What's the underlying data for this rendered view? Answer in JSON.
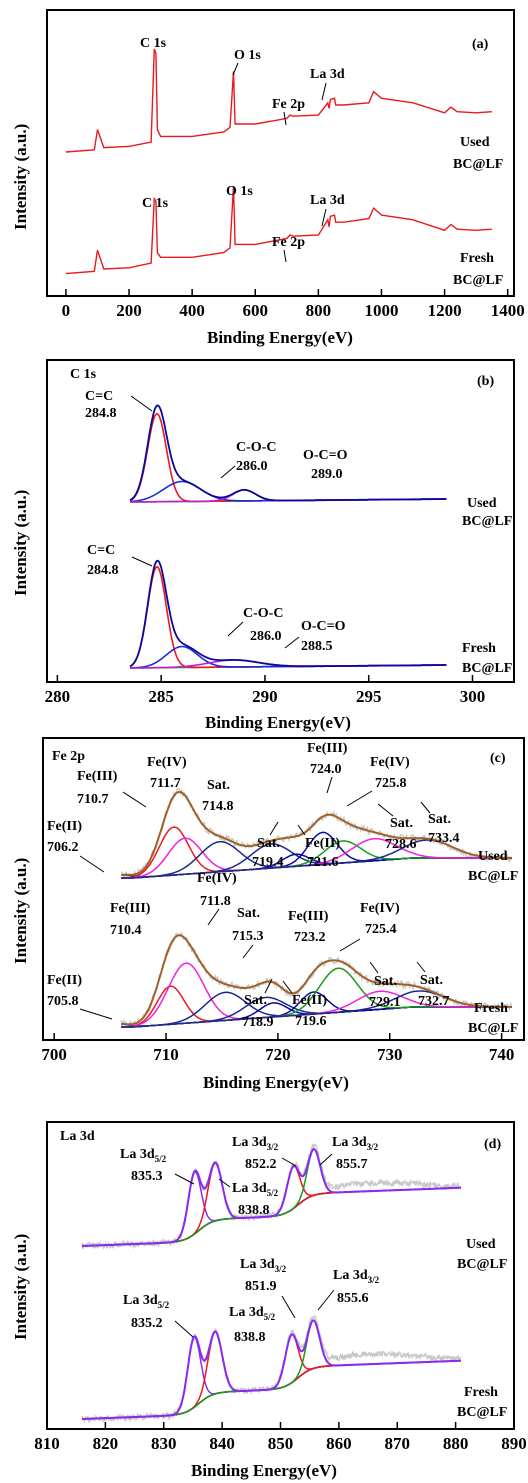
{
  "chart_data": [
    {
      "type": "line",
      "panel": "(a)",
      "xlabel": "Binding Energy(eV)",
      "ylabel": "Intensity (a.u.)",
      "xlim": [
        -60,
        1420
      ],
      "xticks": [
        0,
        200,
        400,
        600,
        800,
        1000,
        1200,
        1400
      ],
      "series": [
        {
          "name": "Used BC@LF",
          "color": "#e8191f",
          "x": [
            0,
            90,
            100,
            120,
            200,
            270,
            280,
            285,
            290,
            300,
            400,
            500,
            520,
            531,
            536,
            600,
            700,
            710,
            720,
            800,
            830,
            834,
            838,
            851,
            855,
            880,
            960,
            975,
            1000,
            1100,
            1200,
            1220,
            1240,
            1300,
            1350
          ],
          "y": [
            0.08,
            0.1,
            0.28,
            0.12,
            0.13,
            0.17,
            1.0,
            0.96,
            0.28,
            0.22,
            0.22,
            0.26,
            0.3,
            0.8,
            0.33,
            0.33,
            0.38,
            0.41,
            0.4,
            0.41,
            0.52,
            0.47,
            0.55,
            0.56,
            0.5,
            0.5,
            0.52,
            0.62,
            0.56,
            0.52,
            0.43,
            0.48,
            0.44,
            0.43,
            0.44
          ]
        },
        {
          "name": "Fresh BC@LF",
          "color": "#e8191f",
          "x": [
            0,
            90,
            100,
            120,
            200,
            270,
            280,
            285,
            290,
            300,
            400,
            500,
            520,
            531,
            536,
            600,
            700,
            710,
            720,
            800,
            830,
            834,
            838,
            851,
            855,
            880,
            960,
            975,
            1000,
            1100,
            1200,
            1220,
            1240,
            1300,
            1350
          ],
          "y": [
            0.08,
            0.1,
            0.28,
            0.12,
            0.13,
            0.17,
            0.72,
            0.7,
            0.26,
            0.22,
            0.22,
            0.26,
            0.3,
            0.83,
            0.33,
            0.33,
            0.38,
            0.41,
            0.4,
            0.41,
            0.54,
            0.48,
            0.57,
            0.58,
            0.52,
            0.52,
            0.55,
            0.64,
            0.58,
            0.54,
            0.45,
            0.5,
            0.46,
            0.45,
            0.46
          ]
        }
      ],
      "annotations": [
        "C 1s",
        "O 1s",
        "Fe 2p",
        "La 3d"
      ]
    },
    {
      "type": "line",
      "panel": "(b)",
      "title": "C 1s",
      "xlabel": "Binding Energy(eV)",
      "ylabel": "Intensity (a.u.)",
      "xlim": [
        279.5,
        302
      ],
      "xticks": [
        280,
        285,
        290,
        295,
        300
      ],
      "series": [
        {
          "name": "Used BC@LF",
          "peaks": [
            {
              "label": "C=C",
              "center": 284.8
            },
            {
              "label": "C-O-C",
              "center": 286.0
            },
            {
              "label": "O-C=O",
              "center": 289.0
            }
          ]
        },
        {
          "name": "Fresh BC@LF",
          "peaks": [
            {
              "label": "C=C",
              "center": 284.8
            },
            {
              "label": "C-O-C",
              "center": 286.0
            },
            {
              "label": "O-C=O",
              "center": 288.5
            }
          ]
        }
      ]
    },
    {
      "type": "line",
      "panel": "(c)",
      "title": "Fe 2p",
      "xlabel": "Binding Energy(eV)",
      "ylabel": "Intensity (a.u.)",
      "xlim": [
        699,
        742
      ],
      "xticks": [
        700,
        710,
        720,
        730,
        740
      ],
      "series": [
        {
          "name": "Used BC@LF",
          "peaks": [
            {
              "label": "Fe(II)",
              "center": 706.2
            },
            {
              "label": "Fe(III)",
              "center": 710.7
            },
            {
              "label": "Fe(IV)",
              "center": 711.7
            },
            {
              "label": "Sat.",
              "center": 714.8
            },
            {
              "label": "Sat.",
              "center": 719.4
            },
            {
              "label": "Fe(II)",
              "center": 721.6
            },
            {
              "label": "Fe(III)",
              "center": 724.0
            },
            {
              "label": "Fe(IV)",
              "center": 725.8
            },
            {
              "label": "Sat.",
              "center": 728.6
            },
            {
              "label": "Sat.",
              "center": 733.4
            }
          ]
        },
        {
          "name": "Fresh BC@LF",
          "peaks": [
            {
              "label": "Fe(II)",
              "center": 705.8
            },
            {
              "label": "Fe(III)",
              "center": 710.4
            },
            {
              "label": "Fe(IV)",
              "center": 711.8
            },
            {
              "label": "Sat.",
              "center": 715.3
            },
            {
              "label": "Sat.",
              "center": 718.9
            },
            {
              "label": "Fe(II)",
              "center": 719.6
            },
            {
              "label": "Fe(III)",
              "center": 723.2
            },
            {
              "label": "Fe(IV)",
              "center": 725.4
            },
            {
              "label": "Sat.",
              "center": 729.1
            },
            {
              "label": "Sat.",
              "center": 732.7
            }
          ]
        }
      ]
    },
    {
      "type": "line",
      "panel": "(d)",
      "title": "La 3d",
      "xlabel": "Binding Energy(eV)",
      "ylabel": "Intensity (a.u.)",
      "xlim": [
        810,
        890
      ],
      "xticks": [
        810,
        820,
        830,
        840,
        850,
        860,
        870,
        880,
        890
      ],
      "series": [
        {
          "name": "Used BC@LF",
          "peaks": [
            {
              "label": "La 3d5/2",
              "center": 835.3
            },
            {
              "label": "La 3d5/2",
              "center": 838.8
            },
            {
              "label": "La 3d3/2",
              "center": 852.2
            },
            {
              "label": "La 3d3/2",
              "center": 855.7
            }
          ]
        },
        {
          "name": "Fresh BC@LF",
          "peaks": [
            {
              "label": "La 3d5/2",
              "center": 835.2
            },
            {
              "label": "La 3d5/2",
              "center": 838.8
            },
            {
              "label": "La 3d3/2",
              "center": 851.9
            },
            {
              "label": "La 3d3/2",
              "center": 855.6
            }
          ]
        }
      ]
    }
  ],
  "labels": {
    "ylabel": "Intensity (a.u.)",
    "xlabel": "Binding Energy(eV)",
    "used": "Used",
    "fresh": "Fresh",
    "sample": "BC@LF",
    "a": "(a)",
    "b": "(b)",
    "c": "(c)",
    "d": "(d)"
  },
  "colors": {
    "survey": "#e8191f",
    "envelope_b": "#0a0a9a",
    "cc": "#e8191f",
    "coc": "#1a2ee0",
    "occ": "#c01fd0",
    "bg_b": "#1a9a1a",
    "envelope_c": "#a0622a",
    "raw": "#c8c8c8",
    "bg_c": "#2aa8a8",
    "fe2": "#0a0a9a",
    "fe3": "#e8191f",
    "fe4": "#f020e0",
    "fe_sat": "#1a2a8a",
    "envelope_d": "#8a2af0",
    "la_red": "#e8191f",
    "la_green": "#1a9a1a",
    "bg_d": "#0a0a9a"
  }
}
